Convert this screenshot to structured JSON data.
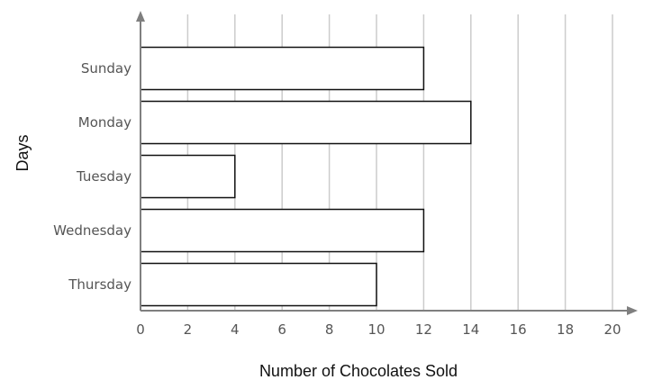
{
  "chart_data": {
    "type": "bar",
    "orientation": "horizontal",
    "categories": [
      "Sunday",
      "Monday",
      "Tuesday",
      "Wednesday",
      "Thursday"
    ],
    "values": [
      12,
      14,
      4,
      12,
      10
    ],
    "xlabel": "Number of Chocolates Sold",
    "ylabel": "Days",
    "xlim": [
      0,
      20
    ],
    "xticks": [
      "0",
      "2",
      "4",
      "6",
      "8",
      "10",
      "12",
      "14",
      "16",
      "18",
      "20"
    ],
    "grid": "vertical",
    "bar_fill": "#ffffff",
    "bar_stroke": "#111111",
    "grid_color": "#cccccc",
    "axis_color": "#7f7f7f"
  }
}
